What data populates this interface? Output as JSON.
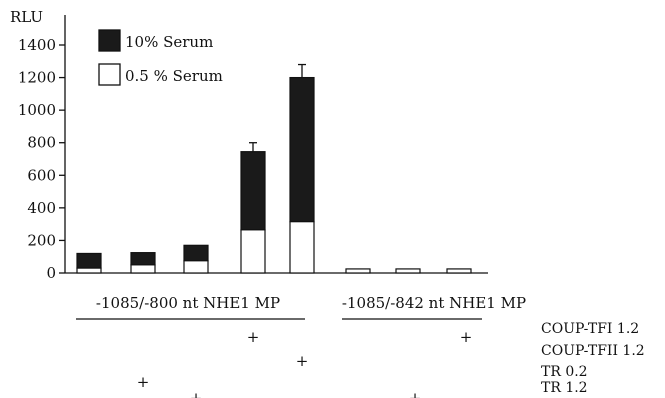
{
  "chart_data": {
    "type": "bar",
    "stacked": true,
    "ylabel": "RLU",
    "ylim": [
      0,
      1400
    ],
    "yticks": [
      0,
      200,
      400,
      600,
      800,
      1000,
      1200,
      1400
    ],
    "grid": false,
    "legend_position": "top-left",
    "series": [
      {
        "name": "0.5 % Serum",
        "color": "#ffffff",
        "values": [
          30,
          50,
          75,
          265,
          315,
          25,
          25,
          25
        ]
      },
      {
        "name": "10% Serum",
        "color": "#1a1a1a",
        "values": [
          90,
          75,
          95,
          480,
          885,
          0,
          0,
          0
        ]
      }
    ],
    "error_bars": [
      null,
      null,
      null,
      55,
      80,
      null,
      null,
      null
    ],
    "group_labels": [
      {
        "text": "-1085/-800 nt NHE1 MP",
        "bars": [
          0,
          1,
          2,
          3,
          4
        ]
      },
      {
        "text": "-1085/-842 nt NHE1 MP",
        "bars": [
          5,
          6,
          7
        ]
      }
    ],
    "factors": [
      {
        "name": "COUP-TFI 1.2",
        "bars_with_plus": [
          3,
          7
        ]
      },
      {
        "name": "COUP-TFII 1.2",
        "bars_with_plus": [
          4
        ]
      },
      {
        "name": "TR 0.2",
        "bars_with_plus": [
          1
        ]
      },
      {
        "name": "TR 1.2",
        "bars_with_plus": [
          2,
          6
        ]
      }
    ],
    "plus_symbol": "+"
  }
}
